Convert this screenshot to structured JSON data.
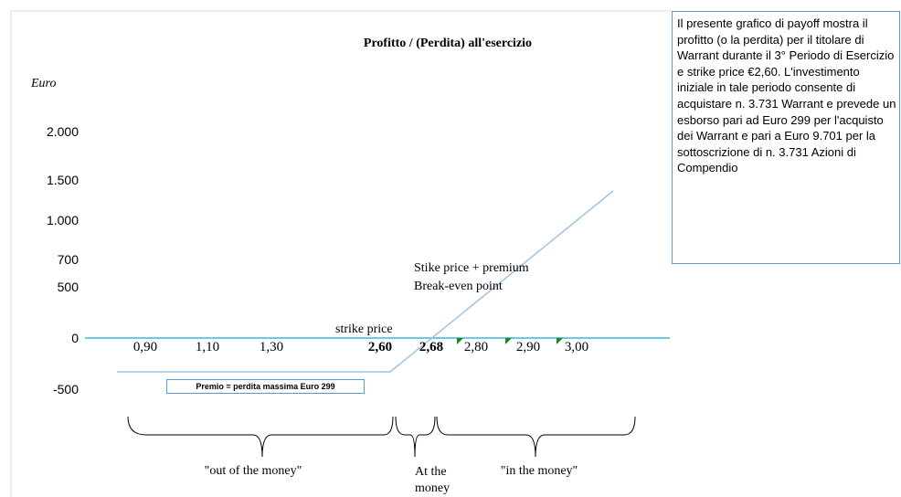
{
  "title": "Profitto / (Perdita) all'esercizio",
  "y_axis_label": "Euro",
  "y_labels": [
    "2.000",
    "1.500",
    "1.000",
    "700",
    "500",
    "0",
    "-500"
  ],
  "x_labels": [
    "0,90",
    "1,10",
    "1,30",
    "2,60",
    "2,68",
    "2,80",
    "2,90",
    "3,00"
  ],
  "annotations": {
    "strike_price": "strike price",
    "break_even": "Stike price + premium Break-even point",
    "premium": "Premio = perdita massima Euro 299"
  },
  "zones": [
    "\"out of the money\"",
    "At the money",
    "\"in the money\""
  ],
  "description": "Il presente grafico di payoff mostra il profitto (o la perdita) per il titolare di Warrant durante il 3° Periodo di Esercizio e strike price €2,60. L'investimento iniziale in tale periodo consente di acquistare n. 3.731 Warrant e prevede un esborso pari ad Euro 299 per l'acquisto dei Warrant e pari a Euro 9.701 per la sottoscrizione di n. 3.731 Azioni di Compendio"
}
